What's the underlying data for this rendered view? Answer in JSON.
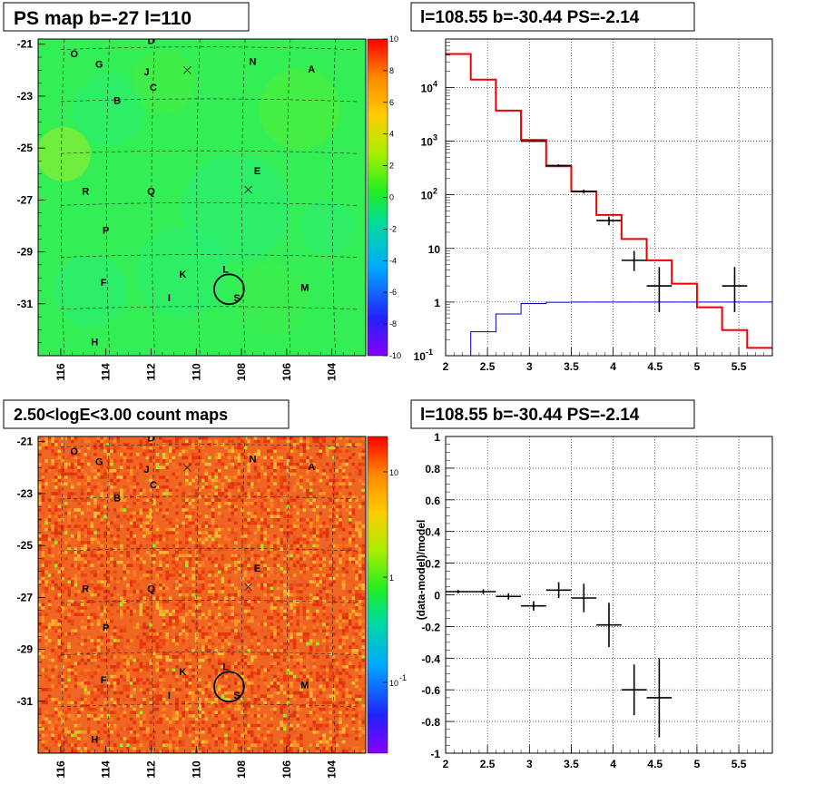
{
  "panels": {
    "tl_title": "PS map b=-27 l=110",
    "tr_title": "l=108.55 b=-30.44 PS=-2.14",
    "bl_title": "2.50<logE<3.00 count maps",
    "br_title": "l=108.55 b=-30.44 PS=-2.14"
  },
  "map": {
    "x_ticks": [
      "116",
      "114",
      "112",
      "110",
      "108",
      "106",
      "104"
    ],
    "y_ticks": [
      "-21",
      "-23",
      "-25",
      "-27",
      "-29",
      "-31"
    ],
    "x_tick_values": [
      116,
      114,
      112,
      110,
      108,
      106,
      104
    ],
    "y_tick_values": [
      -21,
      -23,
      -25,
      -27,
      -29,
      -31
    ],
    "l_range": [
      117,
      102.5
    ],
    "b_range": [
      -20.8,
      -33.0
    ],
    "labels": [
      {
        "t": "O",
        "l": 115.4,
        "b": -21.5
      },
      {
        "t": "D",
        "l": 112.0,
        "b": -21.0
      },
      {
        "t": "G",
        "l": 114.3,
        "b": -21.9
      },
      {
        "t": "N",
        "l": 107.5,
        "b": -21.8
      },
      {
        "t": "A",
        "l": 104.9,
        "b": -22.1
      },
      {
        "t": "J",
        "l": 112.2,
        "b": -22.2
      },
      {
        "t": "C",
        "l": 111.9,
        "b": -22.8
      },
      {
        "t": "B",
        "l": 113.5,
        "b": -23.3
      },
      {
        "t": "E",
        "l": 107.3,
        "b": -26.0
      },
      {
        "t": "R",
        "l": 114.9,
        "b": -26.8
      },
      {
        "t": "Q",
        "l": 112.0,
        "b": -26.8
      },
      {
        "t": "P",
        "l": 114.0,
        "b": -28.3
      },
      {
        "t": "L",
        "l": 108.7,
        "b": -29.8
      },
      {
        "t": "K",
        "l": 110.6,
        "b": -30.0
      },
      {
        "t": "F",
        "l": 114.1,
        "b": -30.3
      },
      {
        "t": "M",
        "l": 105.2,
        "b": -30.5
      },
      {
        "t": "I",
        "l": 111.2,
        "b": -30.9
      },
      {
        "t": "S",
        "l": 108.2,
        "b": -30.9
      },
      {
        "t": "H",
        "l": 114.5,
        "b": -32.6
      }
    ],
    "crosses": [
      {
        "l": 110.4,
        "b": -22.0
      },
      {
        "l": 107.7,
        "b": -26.6
      }
    ],
    "circle": {
      "l": 108.55,
      "b": -30.44,
      "r": 0.55
    }
  },
  "colorbars": {
    "ps_ticks": [
      "10",
      "8",
      "6",
      "4",
      "2",
      "0",
      "-2",
      "-4",
      "-6",
      "-8",
      "-10"
    ],
    "count_ticks": [
      "10",
      "1",
      "10"
    ],
    "count_exp": "-1"
  },
  "chart_data": [
    {
      "type": "heatmap",
      "panel": "top-left",
      "title": "PS map b=-27 l=110",
      "xlabel": "",
      "ylabel": "",
      "x_range": [
        117,
        102.5
      ],
      "y_range": [
        -20.8,
        -33.0
      ],
      "z_range": [
        -10,
        10
      ],
      "colors": {
        "background": "#33ee55",
        "colorbar": "rainbow"
      }
    },
    {
      "type": "line",
      "panel": "top-right",
      "title": "l=108.55 b=-30.44 PS=-2.14",
      "xlabel": "",
      "ylabel": "",
      "xlim": [
        2,
        5.9
      ],
      "ylim": [
        0.1,
        80000
      ],
      "yscale": "log",
      "x_ticks": [
        "2",
        "2.5",
        "3",
        "3.5",
        "4",
        "4.5",
        "5",
        "5.5"
      ],
      "y_ticks": [
        "10^-1",
        "1",
        "10",
        "10^2",
        "10^3",
        "10^4"
      ],
      "model_red": {
        "edges": [
          2.0,
          2.3,
          2.6,
          2.9,
          3.2,
          3.5,
          3.8,
          4.1,
          4.4,
          4.7,
          5.0,
          5.3,
          5.6,
          5.9
        ],
        "values": [
          42000,
          14000,
          3700,
          1050,
          340,
          115,
          42,
          15,
          6,
          2.2,
          0.8,
          0.3,
          0.14
        ],
        "color": "#ee0000"
      },
      "model_blue": {
        "edges": [
          2.0,
          2.3,
          2.6,
          2.9,
          3.2,
          3.5,
          3.8,
          4.1,
          4.4,
          4.7,
          5.0,
          5.3,
          5.6,
          5.9
        ],
        "values": [
          0.1,
          0.28,
          0.6,
          0.94,
          0.99,
          1.0,
          1.0,
          1.0,
          1.0,
          1.0,
          1.0,
          1.0,
          1.0
        ],
        "color": "#0000cc"
      },
      "data_points": [
        {
          "x": 3.05,
          "y": 1000,
          "xerr": 0.15,
          "ylo": 960,
          "yhi": 1040
        },
        {
          "x": 3.35,
          "y": 350,
          "xerr": 0.15,
          "ylo": 330,
          "yhi": 370
        },
        {
          "x": 3.65,
          "y": 115,
          "xerr": 0.15,
          "ylo": 105,
          "yhi": 125
        },
        {
          "x": 3.95,
          "y": 33,
          "xerr": 0.15,
          "ylo": 27,
          "yhi": 39
        },
        {
          "x": 4.25,
          "y": 6,
          "xerr": 0.15,
          "ylo": 3.8,
          "yhi": 9
        },
        {
          "x": 4.55,
          "y": 2,
          "xerr": 0.15,
          "ylo": 0.65,
          "yhi": 4.5
        },
        {
          "x": 5.45,
          "y": 2,
          "xerr": 0.15,
          "ylo": 0.65,
          "yhi": 4.5
        }
      ]
    },
    {
      "type": "heatmap",
      "panel": "bottom-left",
      "title": "2.50<logE<3.00 count maps",
      "xlabel": "",
      "ylabel": "",
      "x_range": [
        117,
        102.5
      ],
      "y_range": [
        -20.8,
        -33.0
      ],
      "colorscale": "log",
      "z_range": [
        0.05,
        25
      ],
      "colors": {
        "dominant": "#ee6622",
        "colorbar": "rainbow"
      }
    },
    {
      "type": "scatter",
      "panel": "bottom-right",
      "title": "l=108.55 b=-30.44 PS=-2.14",
      "xlabel": "",
      "ylabel": "(data-model)/model",
      "xlim": [
        2,
        5.9
      ],
      "ylim": [
        -1,
        1
      ],
      "x_ticks": [
        "2",
        "2.5",
        "3",
        "3.5",
        "4",
        "4.5",
        "5",
        "5.5"
      ],
      "y_ticks": [
        "-1",
        "-0.8",
        "-0.6",
        "-0.4",
        "-0.2",
        "0",
        "0.2",
        "0.4",
        "0.6",
        "0.8",
        "1"
      ],
      "points": [
        {
          "x": 2.15,
          "y": 0.02,
          "xerr": 0.15,
          "yerr": 0.01
        },
        {
          "x": 2.45,
          "y": 0.02,
          "xerr": 0.15,
          "yerr": 0.015
        },
        {
          "x": 2.75,
          "y": -0.01,
          "xerr": 0.15,
          "yerr": 0.02
        },
        {
          "x": 3.05,
          "y": -0.07,
          "xerr": 0.15,
          "yerr": 0.03
        },
        {
          "x": 3.35,
          "y": 0.03,
          "xerr": 0.15,
          "yerr": 0.05
        },
        {
          "x": 3.65,
          "y": -0.02,
          "xerr": 0.15,
          "yerr": 0.09
        },
        {
          "x": 3.95,
          "y": -0.19,
          "xerr": 0.15,
          "yerr": 0.14
        },
        {
          "x": 4.25,
          "y": -0.6,
          "xerr": 0.15,
          "yerr": 0.16
        },
        {
          "x": 4.55,
          "y": -0.65,
          "xerr": 0.15,
          "yerr": 0.25
        }
      ]
    }
  ]
}
